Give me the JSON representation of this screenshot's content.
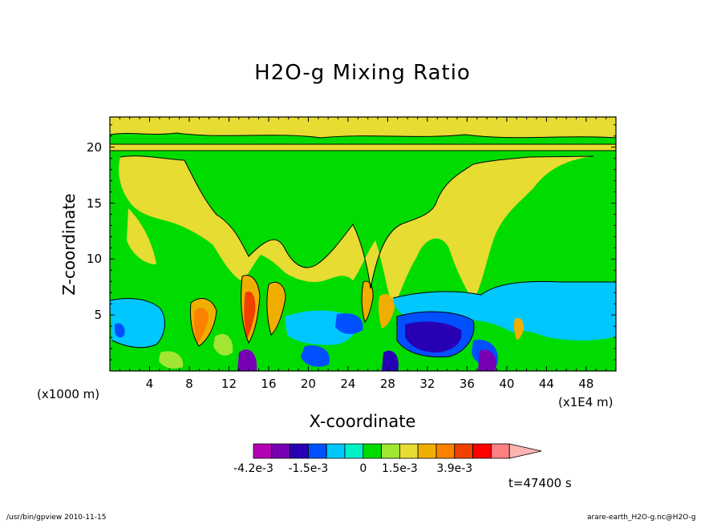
{
  "chart_data": {
    "type": "contour",
    "title": "H2O-g Mixing Ratio",
    "xlabel": "X-coordinate",
    "ylabel": "Z-coordinate",
    "x_unit_label": "(x1000 m)",
    "y_unit_label": "(x1E4 m)",
    "x_ticks": [
      "4",
      "8",
      "12",
      "16",
      "20",
      "24",
      "28",
      "32",
      "36",
      "40",
      "44",
      "48"
    ],
    "y_ticks": [
      "5",
      "10",
      "15",
      "20"
    ],
    "xlim": [
      0,
      51
    ],
    "ylim": [
      0,
      22.7
    ],
    "colorbar": {
      "colors": [
        "#b400b4",
        "#7800b4",
        "#2800b4",
        "#0050ff",
        "#00c8ff",
        "#00f0c8",
        "#00dc00",
        "#a0e632",
        "#e6dc32",
        "#f0af00",
        "#fa8200",
        "#f04000",
        "#ff0000",
        "#ff8080",
        "#ffb4b4"
      ],
      "tick_labels": [
        "-4.2e-3",
        "-1.5e-3",
        "0",
        "1.5e-3",
        "3.9e-3"
      ],
      "tick_values": [
        -0.0042,
        -0.0015,
        0,
        0.0015,
        0.0039
      ]
    },
    "time_label": "t=47400 s",
    "footer_left": "/usr/bin/gpview   2010-11-15",
    "footer_right": "arare-earth_H2O-g.nc@H2O-g"
  }
}
